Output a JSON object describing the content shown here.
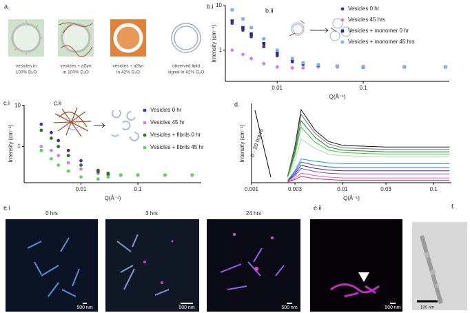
{
  "panel_a": {
    "label": "a.",
    "captions": [
      [
        "vesicles in",
        "100% D₂O"
      ],
      [
        "vesicles + aSyn",
        "in 100% D₂O"
      ],
      [
        "vesicles + aSyn",
        "in 42% D₂O"
      ],
      [
        "observed lipid",
        "signal in 42% D₂O"
      ]
    ]
  },
  "chart_data": [
    {
      "type": "scatter",
      "label": "b.i",
      "inset_label": "b.ii",
      "xlabel": "Q(Å⁻¹)",
      "ylabel": "Intensity (cm⁻¹)",
      "xscale": "log",
      "yscale": "log",
      "xlim": [
        0.0025,
        1
      ],
      "ylim": [
        0.2,
        10
      ],
      "xticks": [
        0.01,
        0.1
      ],
      "yticks": [
        1,
        10
      ],
      "legend": "upper right",
      "x": [
        0.003,
        0.004,
        0.005,
        0.007,
        0.01,
        0.015,
        0.02,
        0.03,
        0.05,
        0.1,
        0.3,
        0.9
      ],
      "series": [
        {
          "name": "Vesicles 0 hr",
          "color": "#5b2a86",
          "marker": "circle",
          "values": [
            4,
            2.8,
            2.0,
            1.2,
            0.75,
            0.55,
            0.48,
            0.45,
            0.43,
            0.42,
            0.42,
            0.42
          ]
        },
        {
          "name": "Vesicles 45 hrs",
          "color": "#d07ee8",
          "marker": "diamond",
          "values": [
            1,
            0.8,
            0.65,
            0.5,
            0.42,
            0.4,
            0.4,
            0.42,
            0.42,
            0.42,
            0.42,
            0.42
          ]
        },
        {
          "name": "Vesicles + monomer 0 hr",
          "color": "#1f2e8f",
          "marker": "square",
          "values": [
            4.5,
            3.2,
            2.3,
            1.4,
            0.85,
            0.6,
            0.5,
            0.46,
            0.44,
            0.42,
            0.42,
            0.42
          ]
        },
        {
          "name": "Vesicles + monomer 45 hrs",
          "color": "#7fb3e0",
          "marker": "square",
          "values": [
            8,
            5,
            3.2,
            1.8,
            1.0,
            0.65,
            0.52,
            0.47,
            0.44,
            0.43,
            0.42,
            0.42
          ]
        }
      ]
    },
    {
      "type": "scatter",
      "label": "c.i",
      "inset_label": "c.ii",
      "xlabel": "Q(Å⁻¹)",
      "ylabel": "Intensity (cm⁻¹)",
      "xscale": "log",
      "yscale": "log",
      "xlim": [
        0.001,
        1.3
      ],
      "ylim": [
        0.13,
        10.5
      ],
      "xticks": [
        0.01,
        0.1
      ],
      "yticks": [
        1,
        10
      ],
      "legend": "upper right",
      "x": [
        0.002,
        0.003,
        0.004,
        0.006,
        0.01,
        0.02,
        0.03,
        0.05,
        0.1,
        0.3,
        0.9
      ],
      "series": [
        {
          "name": "Vesicles 0 hr",
          "color": "#5b2a86",
          "marker": "circle",
          "values": [
            3.5,
            2.2,
            1.4,
            0.8,
            0.45,
            0.26,
            0.22,
            0.2,
            0.2,
            0.2,
            0.2
          ]
        },
        {
          "name": "Vesicles 45 hr",
          "color": "#d07ee8",
          "marker": "circle",
          "values": [
            1.0,
            0.8,
            0.6,
            0.4,
            0.28,
            0.22,
            0.2,
            0.2,
            0.2,
            0.2,
            0.2
          ]
        },
        {
          "name": "Vesicles + fibrils 0 hr",
          "color": "#1f7a1f",
          "marker": "circle",
          "values": [
            2.5,
            1.6,
            1.0,
            0.6,
            0.35,
            0.24,
            0.21,
            0.2,
            0.2,
            0.2,
            0.2
          ]
        },
        {
          "name": "Vesicles + fibrils 45 hr",
          "color": "#5fd35f",
          "marker": "circle",
          "values": [
            0.8,
            0.5,
            0.35,
            0.25,
            0.18,
            0.16,
            0.18,
            0.2,
            0.2,
            0.2,
            0.2
          ]
        }
      ]
    },
    {
      "type": "line",
      "label": "d.",
      "xlabel": "Q(Å⁻¹)",
      "ylabel": "Intensity (cm⁻¹)",
      "annotation": "0 - 20 hours",
      "xscale": "log",
      "xlim": [
        0.001,
        0.157
      ],
      "ylim": [
        0,
        10
      ],
      "xticks": [
        0.001,
        0.003,
        0.01,
        0.03,
        0.1
      ],
      "x": [
        0.0025,
        0.003,
        0.0035,
        0.005,
        0.007,
        0.01,
        0.03,
        0.1,
        0.15
      ],
      "series": [
        {
          "color": "#111111",
          "values": [
            0.9,
            4.6,
            9.2,
            6.6,
            5.2,
            4.7,
            4.5,
            4.5,
            4.5
          ]
        },
        {
          "color": "#777777",
          "values": [
            0.9,
            4.3,
            8.6,
            6.2,
            4.9,
            4.4,
            4.2,
            4.2,
            4.2
          ]
        },
        {
          "color": "#1e7d2a",
          "values": [
            0.8,
            3.9,
            7.8,
            5.7,
            4.5,
            4.1,
            3.9,
            3.9,
            3.9
          ]
        },
        {
          "color": "#3cc043",
          "values": [
            0.7,
            3.5,
            7.0,
            5.1,
            4.1,
            3.8,
            3.6,
            3.6,
            3.6
          ]
        },
        {
          "color": "#a6e39a",
          "values": [
            0.6,
            2.8,
            5.5,
            4.3,
            3.6,
            3.4,
            3.3,
            3.3,
            3.3
          ]
        },
        {
          "color": "#2a8de0",
          "values": [
            0.3,
            1.5,
            3.0,
            2.7,
            2.5,
            2.4,
            2.4,
            2.4,
            2.4
          ]
        },
        {
          "color": "#3c5fd6",
          "values": [
            0.3,
            1.3,
            2.6,
            2.2,
            2.0,
            1.9,
            1.9,
            1.9,
            1.9
          ]
        },
        {
          "color": "#27309a",
          "values": [
            0.2,
            1.1,
            2.2,
            1.8,
            1.6,
            1.5,
            1.5,
            1.5,
            1.5
          ]
        },
        {
          "color": "#8a3fc4",
          "values": [
            0.2,
            0.9,
            1.8,
            1.4,
            1.2,
            1.1,
            1.1,
            1.1,
            1.1
          ]
        },
        {
          "color": "#e05fd0",
          "values": [
            0.1,
            0.6,
            1.2,
            0.9,
            0.7,
            0.6,
            0.6,
            0.6,
            0.6
          ]
        },
        {
          "color": "#e0304a",
          "values": [
            0.1,
            0.4,
            0.8,
            0.5,
            0.4,
            0.3,
            0.3,
            0.3,
            0.3
          ]
        }
      ]
    }
  ],
  "panel_e": {
    "label": "e.i",
    "label_ii": "e.ii",
    "times": [
      "0 hrs",
      "3 hrs",
      "24 hrs"
    ],
    "scale_bars": [
      "500 nm",
      "500 nm",
      "500 nm",
      "500 nm"
    ]
  },
  "panel_f": {
    "label": "f.",
    "scale_bar": "100 nm"
  }
}
